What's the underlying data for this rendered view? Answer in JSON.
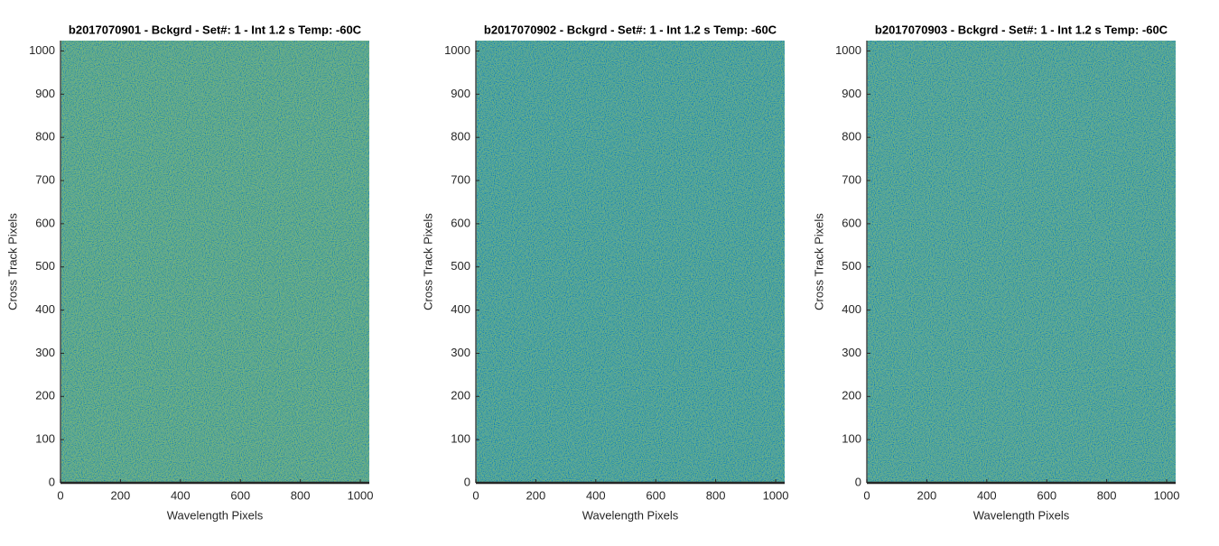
{
  "chart_data": [
    {
      "type": "image",
      "title": "b2017070901 - Bckgrd - Set#: 1 - Int 1.2 s Temp: -60C",
      "x_label": "Wavelength Pixels",
      "y_label": "Cross Track Pixels",
      "color": "#3fae8c",
      "xlim": [
        0,
        1030
      ],
      "ylim": [
        0,
        1024
      ],
      "xticks": [
        0,
        200,
        400,
        600,
        800,
        1000
      ],
      "yticks": [
        0,
        100,
        200,
        300,
        400,
        500,
        600,
        700,
        800,
        900,
        1000
      ]
    },
    {
      "type": "image",
      "title": "b2017070902 - Bckgrd - Set#: 1 - Int 1.2 s Temp: -60C",
      "x_label": "Wavelength Pixels",
      "y_label": "Cross Track Pixels",
      "color": "#27a5a2",
      "xlim": [
        0,
        1030
      ],
      "ylim": [
        0,
        1024
      ],
      "xticks": [
        0,
        200,
        400,
        600,
        800,
        1000
      ],
      "yticks": [
        0,
        100,
        200,
        300,
        400,
        500,
        600,
        700,
        800,
        900,
        1000
      ]
    },
    {
      "type": "image",
      "title": "b2017070903 - Bckgrd - Set#: 1 - Int 1.2 s Temp: -60C",
      "x_label": "Wavelength Pixels",
      "y_label": "Cross Track Pixels",
      "color": "#2ea8a0",
      "xlim": [
        0,
        1030
      ],
      "ylim": [
        0,
        1024
      ],
      "xticks": [
        0,
        200,
        400,
        600,
        800,
        1000
      ],
      "yticks": [
        0,
        100,
        200,
        300,
        400,
        500,
        600,
        700,
        800,
        900,
        1000
      ]
    }
  ]
}
